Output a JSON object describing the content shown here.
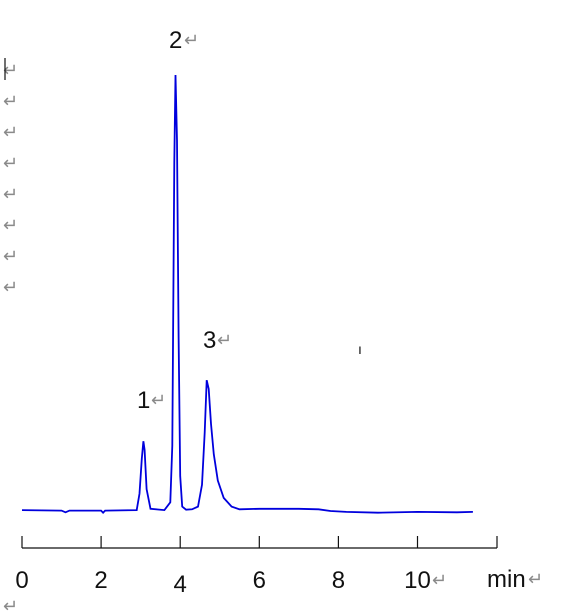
{
  "chart_data": {
    "type": "line",
    "title": "",
    "xlabel": "min",
    "ylabel": "",
    "xlim": [
      0,
      12
    ],
    "ylim": [
      0,
      100
    ],
    "grid": false,
    "series": [
      {
        "color": "#0000dd",
        "x": [
          0,
          1.0,
          1.1,
          1.2,
          2.0,
          2.05,
          2.1,
          2.9,
          2.97,
          3.03,
          3.07,
          3.1,
          3.15,
          3.25,
          3.6,
          3.75,
          3.8,
          3.85,
          3.88,
          3.92,
          3.96,
          4.0,
          4.05,
          4.15,
          4.3,
          4.45,
          4.55,
          4.62,
          4.67,
          4.72,
          4.78,
          4.85,
          4.95,
          5.1,
          5.3,
          5.5,
          6.0,
          7.0,
          7.5,
          7.8,
          8.2,
          9.0,
          10.0,
          11.0,
          11.4
        ],
        "y": [
          0.2,
          0.1,
          -0.3,
          0.1,
          0.1,
          -0.4,
          0.1,
          0.2,
          4,
          12,
          16,
          14,
          5,
          0.5,
          0.2,
          2,
          15,
          80,
          100,
          85,
          40,
          8,
          1,
          0.3,
          0.4,
          1,
          6,
          18,
          30,
          28,
          20,
          13,
          7,
          3,
          1,
          0.4,
          0.5,
          0.5,
          0.4,
          0,
          -0.2,
          -0.4,
          -0.2,
          -0.3,
          -0.2
        ]
      }
    ],
    "peak_labels": [
      "1",
      "2",
      "3"
    ],
    "x_ticks": [
      0,
      2,
      4,
      6,
      8,
      10
    ],
    "x_tick_labels": [
      "0",
      "2",
      "4",
      "6",
      "8",
      "10"
    ],
    "para_mark": "↵",
    "stray_mark": "ı"
  }
}
